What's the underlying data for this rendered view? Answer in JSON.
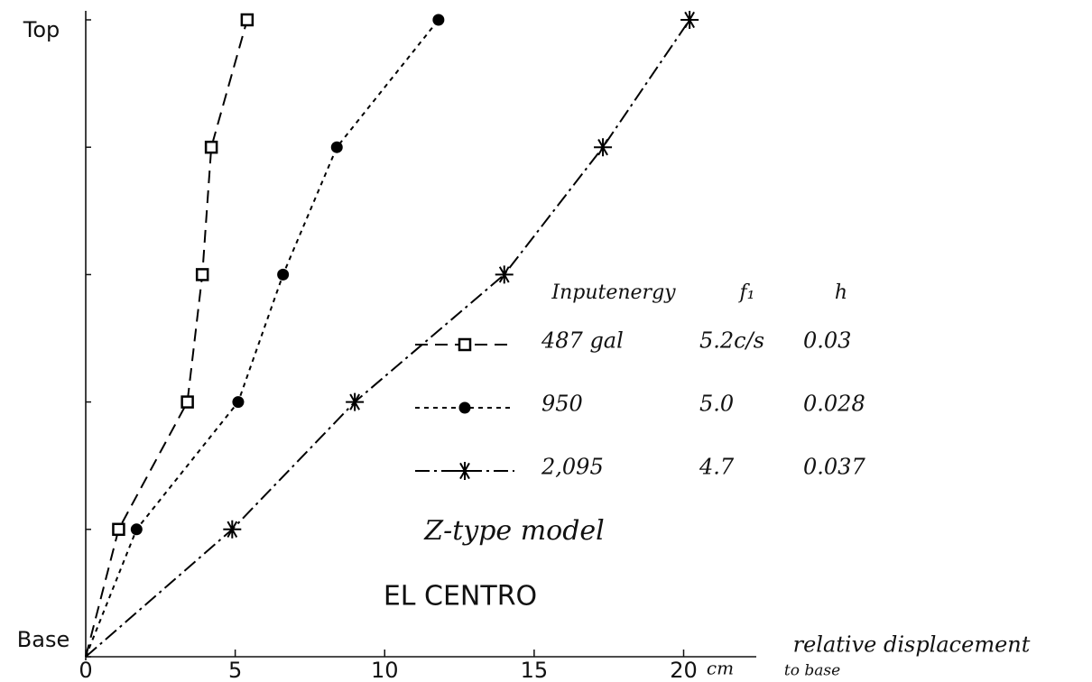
{
  "chart_data": {
    "type": "line",
    "categories": [
      "Base",
      null,
      null,
      null,
      null,
      "Top"
    ],
    "series": [
      {
        "name": "487 gal",
        "f1": "5.2c/s",
        "h": "0.03",
        "color": "#000000",
        "marker": "square",
        "dash": "14 8",
        "values": [
          0,
          1.1,
          3.4,
          3.9,
          4.2,
          5.4
        ]
      },
      {
        "name": "950",
        "f1": "5.0",
        "h": "0.028",
        "color": "#000000",
        "marker": "circle",
        "dash": "5 5",
        "values": [
          0,
          1.7,
          5.1,
          6.6,
          8.4,
          11.8
        ]
      },
      {
        "name": "2,095",
        "f1": "4.7",
        "h": "0.037",
        "color": "#000000",
        "marker": "asterisk",
        "dash": "16 5 3 5",
        "values": [
          0,
          4.9,
          9.0,
          14.0,
          17.3,
          20.2
        ]
      }
    ],
    "legend_columns": [
      "Inputenergy",
      "f₁",
      "h"
    ],
    "xlim": [
      0,
      22.4
    ],
    "xticks": [
      0,
      5,
      10,
      15,
      20
    ],
    "x_unit": "cm",
    "xlabel": "relative displacement",
    "xlabel_sub": "to base",
    "annotations": [
      "Z-type model",
      "EL CENTRO"
    ]
  }
}
